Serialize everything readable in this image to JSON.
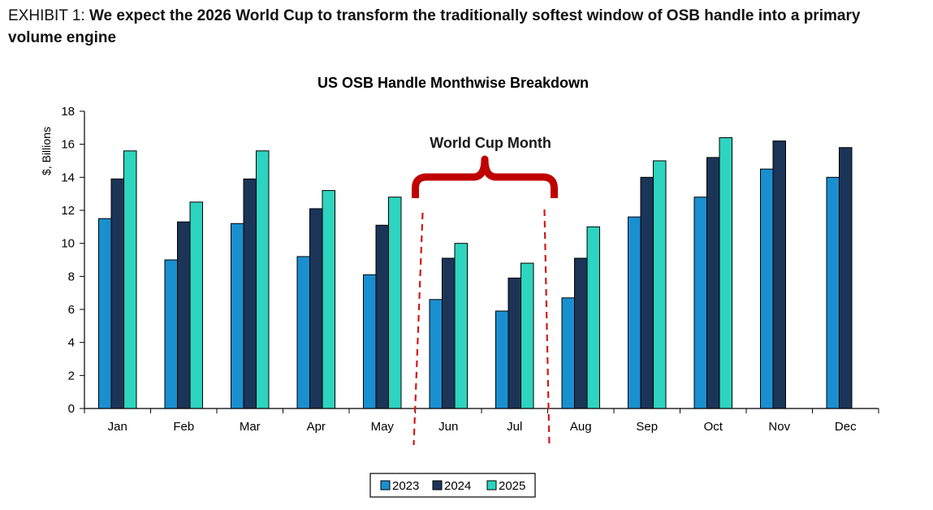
{
  "header": {
    "exhibit_label": "EXHIBIT 1",
    "separator": ": ",
    "title": "We expect the 2026 World Cup to transform the traditionally softest window of OSB handle into a primary volume engine"
  },
  "chart_data": {
    "type": "bar",
    "title": "US OSB Handle Monthwise Breakdown",
    "xlabel": "",
    "ylabel": "$, Billions",
    "ylim": [
      0,
      18
    ],
    "yticks": [
      0,
      2,
      4,
      6,
      8,
      10,
      12,
      14,
      16,
      18
    ],
    "grid": false,
    "legend_position": "bottom-center",
    "categories": [
      "Jan",
      "Feb",
      "Mar",
      "Apr",
      "May",
      "Jun",
      "Jul",
      "Aug",
      "Sep",
      "Oct",
      "Nov",
      "Dec"
    ],
    "series": [
      {
        "name": "2023",
        "color": "#1a8fd0",
        "values": [
          11.5,
          9.0,
          11.2,
          9.2,
          8.1,
          6.6,
          5.9,
          6.7,
          11.6,
          12.8,
          14.5,
          14.0
        ]
      },
      {
        "name": "2024",
        "color": "#1b3558",
        "values": [
          13.9,
          11.3,
          13.9,
          12.1,
          11.1,
          9.1,
          7.9,
          9.1,
          14.0,
          15.2,
          16.2,
          15.8
        ]
      },
      {
        "name": "2025",
        "color": "#2dd4bf",
        "values": [
          15.6,
          12.5,
          15.6,
          13.2,
          12.8,
          10.0,
          8.8,
          11.0,
          15.0,
          16.4,
          null,
          null
        ]
      }
    ],
    "annotation": {
      "text": "World Cup Month",
      "months": [
        "Jun",
        "Jul"
      ],
      "brace_color": "#c00000",
      "line_color": "#d0191c"
    }
  }
}
